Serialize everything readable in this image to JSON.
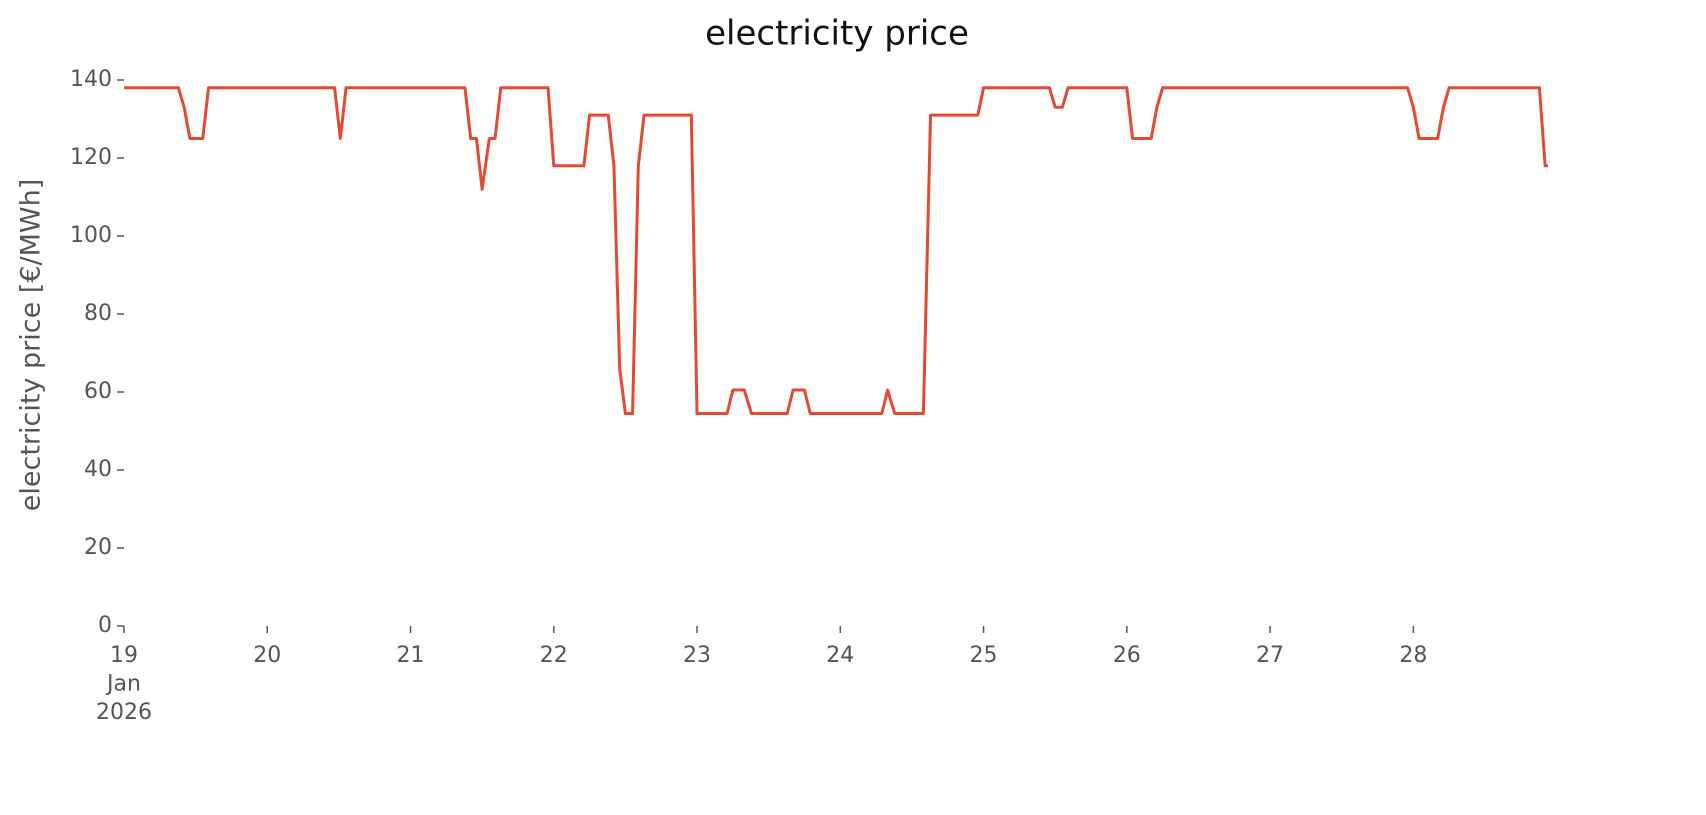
{
  "chart_data": {
    "type": "line",
    "title": "electricity price",
    "y_label": "electricity price [€/MWh]",
    "xlim": [
      19,
      28.94
    ],
    "ylim": [
      0,
      140
    ],
    "xticks": [
      {
        "value": 19,
        "label": "19\nJan\n2026"
      },
      20,
      21,
      22,
      23,
      24,
      25,
      26,
      27,
      28
    ],
    "yticks": [
      0,
      20,
      40,
      60,
      80,
      100,
      120,
      140
    ],
    "grid": false,
    "series": [
      {
        "name": "electricity price",
        "color": "#e24a33",
        "x": [
          19,
          19.38,
          19.42,
          19.46,
          19.55,
          19.59,
          20.47,
          20.51,
          20.55,
          21.38,
          21.42,
          21.46,
          21.5,
          21.55,
          21.59,
          21.63,
          21.96,
          22.0,
          22.21,
          22.25,
          22.38,
          22.42,
          22.46,
          22.5,
          22.55,
          22.59,
          22.63,
          22.96,
          23.0,
          23.21,
          23.25,
          23.33,
          23.38,
          23.63,
          23.67,
          23.75,
          23.79,
          24.29,
          24.33,
          24.38,
          24.58,
          24.63,
          24.96,
          25.0,
          25.46,
          25.5,
          25.55,
          25.59,
          26.0,
          26.04,
          26.17,
          26.21,
          26.25,
          27.96,
          28.0,
          28.04,
          28.17,
          28.21,
          28.25,
          28.88,
          28.92,
          28.94
        ],
        "values": [
          138,
          138,
          133,
          125,
          125,
          138,
          138,
          125,
          138,
          138,
          125,
          125,
          112,
          125,
          125,
          138,
          138,
          118,
          118,
          131,
          131,
          118,
          66,
          54.5,
          54.5,
          118,
          131,
          131,
          54.5,
          54.5,
          60.5,
          60.5,
          54.5,
          54.5,
          60.5,
          60.5,
          54.5,
          54.5,
          60.5,
          54.5,
          54.5,
          131,
          131,
          138,
          138,
          133,
          133,
          138,
          138,
          125,
          125,
          133,
          138,
          138,
          133,
          125,
          125,
          133,
          138,
          138,
          118,
          118
        ]
      }
    ]
  }
}
